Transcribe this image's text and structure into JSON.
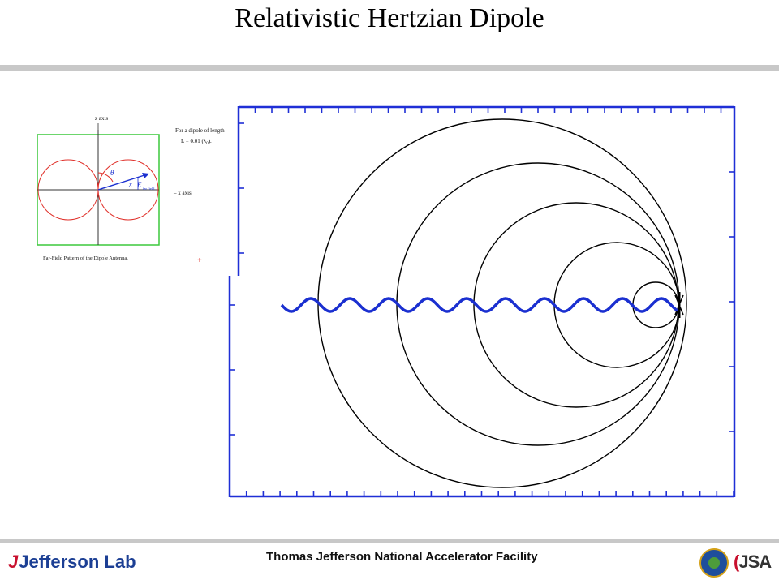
{
  "title": "Relativistic Hertzian Dipole",
  "inset": {
    "z_axis_label": "z axis",
    "x_axis_label": "– x axis",
    "note_line1": "For a dipole of length",
    "note_line2_prefix": "L = 0.01 (λ",
    "note_line2_sub": "0",
    "note_line2_suffix": ").",
    "caption": "Far-Field Pattern of the Dipole Antenna.",
    "theta_symbol": "θ",
    "x_symbol": "x",
    "e_symbol": "E",
    "far_field_sub": "far field",
    "plus_marker": "+"
  },
  "colors": {
    "frame_blue": "#1f2fd6",
    "wave_blue": "#1a2fd0",
    "wavefront": "#000000",
    "inset_frame": "#3cc83c",
    "lobe_red": "#e0302a",
    "vector_blue": "#1a2fd0"
  },
  "footer": {
    "facility": "Thomas Jefferson National Accelerator Facility",
    "logo_text": "Jefferson Lab",
    "partner_logo": "JSA",
    "logo_icon": "jefferson-lab-swoosh-icon",
    "seal_icon": "doe-seal-icon"
  }
}
